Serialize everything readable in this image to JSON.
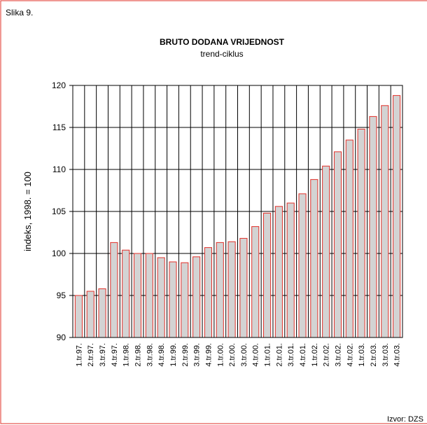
{
  "figure_label": "Slika 9.",
  "source": "Izvor: DZS",
  "chart_data": {
    "type": "bar",
    "title": "BRUTO DODANA VRIJEDNOST",
    "subtitle": "trend-ciklus",
    "y_label": "indeks, 1998. = 100",
    "categories": [
      "1.tr.97.",
      "2.tr.97.",
      "3.tr.97.",
      "4.tr.97.",
      "1.tr.98.",
      "2.tr.98.",
      "3.tr.98.",
      "4.tr.98.",
      "1.tr.99.",
      "2.tr.99.",
      "3.tr.99.",
      "4.tr.99.",
      "1.tr.00.",
      "2.tr.00.",
      "3.tr.00.",
      "4.tr.00.",
      "1.tr.01.",
      "2.tr.01.",
      "3.tr.01.",
      "4.tr.01.",
      "1.tr.02.",
      "2.tr.02.",
      "3.tr.02.",
      "4.tr.02.",
      "1.tr.03.",
      "2.tr.03.",
      "3.tr.03.",
      "4.tr.03."
    ],
    "values": [
      95.0,
      95.5,
      95.8,
      101.3,
      100.4,
      100.0,
      100.0,
      99.5,
      99.0,
      98.9,
      99.6,
      100.7,
      101.3,
      101.4,
      101.8,
      103.2,
      104.8,
      105.6,
      106.0,
      107.1,
      108.8,
      110.4,
      112.1,
      113.5,
      114.8,
      116.3,
      117.6,
      118.8
    ],
    "color": "#d3d3d3",
    "edge_color": "#e2302a",
    "ylim": [
      90,
      120
    ],
    "yticks": [
      90,
      95,
      100,
      105,
      110,
      115,
      120
    ],
    "grid": true
  }
}
